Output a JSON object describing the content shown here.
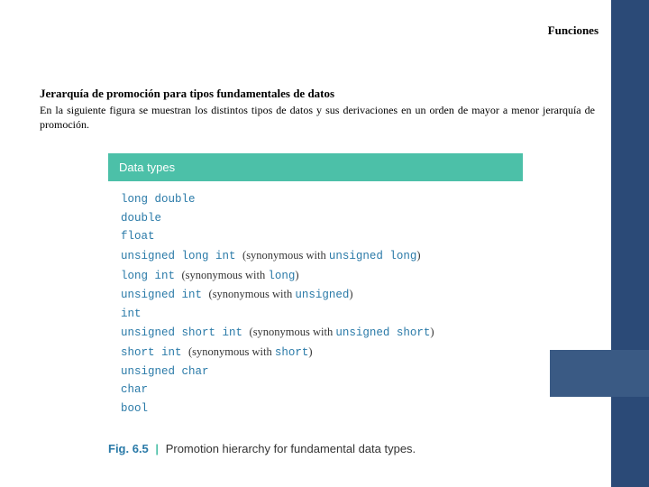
{
  "header": {
    "title": "Funciones"
  },
  "section": {
    "heading": "Jerarquía de promoción para tipos fundamentales de datos",
    "paragraph": "En la siguiente figura se muestran los distintos tipos de datos y sus derivaciones en un orden de mayor a menor jerarquía de promoción."
  },
  "figure": {
    "header": "Data types",
    "caption_num": "Fig. 6.5",
    "caption_bar": "|",
    "caption_text": "Promotion hierarchy for fundamental data types.",
    "syn_prefix": "(synonymous with ",
    "syn_suffix": ")",
    "rows": [
      {
        "type": "long double"
      },
      {
        "type": "double"
      },
      {
        "type": "float"
      },
      {
        "type": "unsigned long int",
        "syn": "unsigned long"
      },
      {
        "type": "long int",
        "syn": "long"
      },
      {
        "type": "unsigned int",
        "syn": "unsigned"
      },
      {
        "type": "int"
      },
      {
        "type": "unsigned short int",
        "syn": "unsigned short"
      },
      {
        "type": "short int",
        "syn": "short"
      },
      {
        "type": "unsigned char"
      },
      {
        "type": "char"
      },
      {
        "type": "bool"
      }
    ]
  },
  "colors": {
    "sidebar": "#2b4a77",
    "sidebar_inset": "#3a5a84",
    "fig_header_bg": "#4cc0a8",
    "mono_text": "#2a7aa8"
  }
}
